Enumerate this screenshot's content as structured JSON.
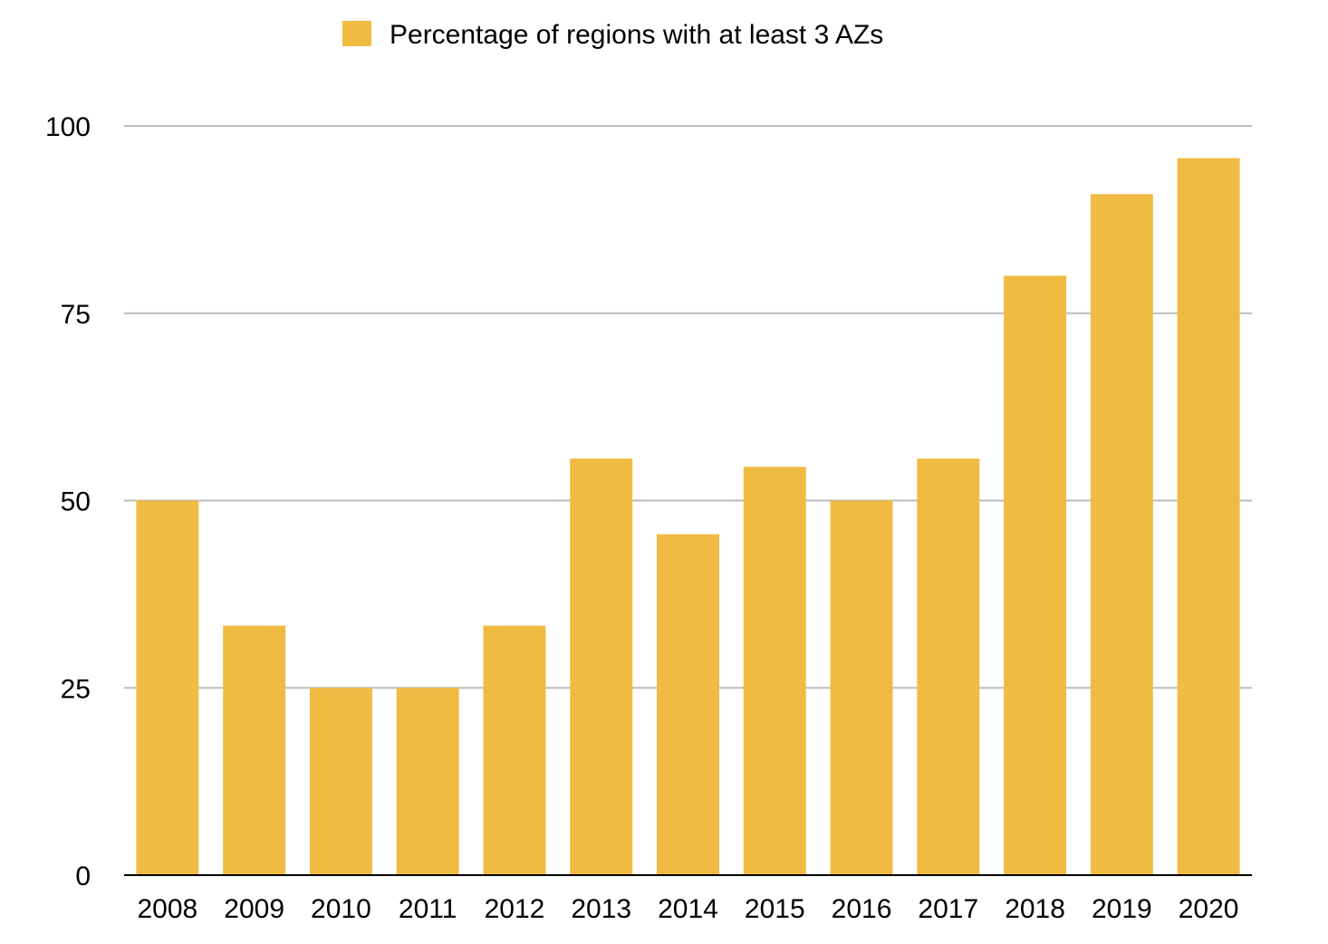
{
  "chart_data": {
    "type": "bar",
    "categories": [
      "2008",
      "2009",
      "2010",
      "2011",
      "2012",
      "2013",
      "2014",
      "2015",
      "2016",
      "2017",
      "2018",
      "2019",
      "2020"
    ],
    "series": [
      {
        "name": "Percentage of regions with at least 3 AZs",
        "values": [
          50,
          33.3,
          25,
          25,
          33.3,
          55.6,
          45.5,
          54.5,
          50,
          55.6,
          80,
          90.9,
          95.7
        ],
        "color": "#EFBB42"
      }
    ],
    "yticks": [
      0,
      25,
      50,
      75,
      100
    ],
    "ylim": [
      0,
      100
    ],
    "grid": true,
    "legend_position": "top-center",
    "title": "",
    "xlabel": "",
    "ylabel": ""
  }
}
